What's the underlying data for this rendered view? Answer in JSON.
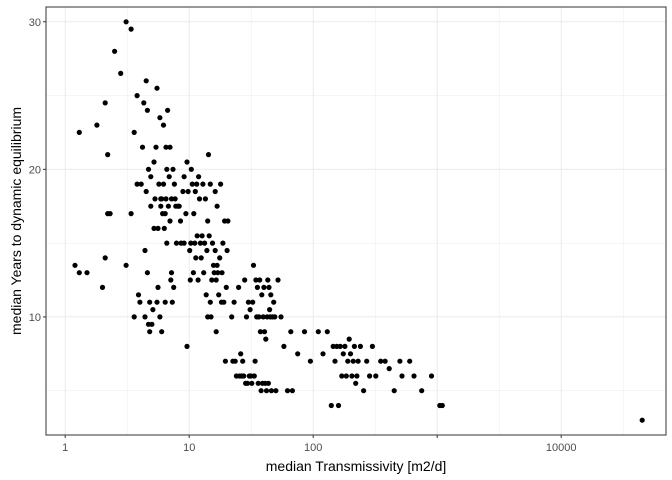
{
  "chart_data": {
    "type": "scatter",
    "xlabel": "median Transmissivity [m2/d]",
    "ylabel": "median Years to dynamic equilibrium",
    "x_scale": "log10",
    "xlim": [
      0.7,
      70000
    ],
    "ylim": [
      2.0,
      31.0
    ],
    "x_ticks": [
      1,
      10,
      100,
      1000,
      10000
    ],
    "x_tick_labels": [
      "1",
      "10",
      "100",
      "10000"
    ],
    "x_tick_label_values": [
      1,
      10,
      100,
      10000
    ],
    "y_ticks": [
      10,
      20,
      30
    ],
    "y_tick_labels": [
      "10",
      "20",
      "30"
    ],
    "grid": true,
    "legend": "none",
    "point_color": "#000000",
    "points": [
      [
        1.2,
        13.5
      ],
      [
        1.3,
        13
      ],
      [
        1.3,
        22.5
      ],
      [
        1.5,
        13
      ],
      [
        1.8,
        23
      ],
      [
        2.0,
        12
      ],
      [
        2.1,
        24.5
      ],
      [
        2.1,
        14
      ],
      [
        2.2,
        17
      ],
      [
        2.2,
        21
      ],
      [
        2.3,
        17
      ],
      [
        2.5,
        28
      ],
      [
        2.8,
        26.5
      ],
      [
        3.1,
        30
      ],
      [
        3.1,
        13.5
      ],
      [
        3.4,
        17
      ],
      [
        3.4,
        29.5
      ],
      [
        3.6,
        22.5
      ],
      [
        3.6,
        10
      ],
      [
        3.8,
        19
      ],
      [
        3.8,
        25
      ],
      [
        3.9,
        11.5
      ],
      [
        4.0,
        11
      ],
      [
        4.1,
        19
      ],
      [
        4.2,
        21.5
      ],
      [
        4.3,
        24.5
      ],
      [
        4.4,
        10
      ],
      [
        4.4,
        14.5
      ],
      [
        4.5,
        18.5
      ],
      [
        4.5,
        26
      ],
      [
        4.6,
        13
      ],
      [
        4.6,
        24
      ],
      [
        4.7,
        9.5
      ],
      [
        4.7,
        20
      ],
      [
        4.8,
        9
      ],
      [
        4.8,
        11
      ],
      [
        4.9,
        17.5
      ],
      [
        4.9,
        19.5
      ],
      [
        5.0,
        9.5
      ],
      [
        5.1,
        10.5
      ],
      [
        5.2,
        20.5
      ],
      [
        5.2,
        16
      ],
      [
        5.3,
        18
      ],
      [
        5.4,
        21.5
      ],
      [
        5.5,
        11
      ],
      [
        5.5,
        25.5
      ],
      [
        5.6,
        12
      ],
      [
        5.6,
        16
      ],
      [
        5.7,
        19
      ],
      [
        5.8,
        10
      ],
      [
        5.8,
        23.5
      ],
      [
        5.9,
        17.5
      ],
      [
        5.9,
        18
      ],
      [
        6.0,
        9
      ],
      [
        6.0,
        18
      ],
      [
        6.1,
        17
      ],
      [
        6.2,
        19
      ],
      [
        6.2,
        23
      ],
      [
        6.3,
        16
      ],
      [
        6.4,
        11
      ],
      [
        6.4,
        17
      ],
      [
        6.5,
        18
      ],
      [
        6.5,
        21.5
      ],
      [
        6.6,
        20
      ],
      [
        6.6,
        15
      ],
      [
        6.7,
        24
      ],
      [
        6.8,
        17.5
      ],
      [
        6.9,
        19.5
      ],
      [
        7.0,
        16.5
      ],
      [
        7.0,
        21.5
      ],
      [
        7.1,
        12.5
      ],
      [
        7.2,
        13
      ],
      [
        7.2,
        18
      ],
      [
        7.3,
        11
      ],
      [
        7.4,
        20
      ],
      [
        7.5,
        12
      ],
      [
        7.6,
        19
      ],
      [
        7.7,
        18
      ],
      [
        7.8,
        17.5
      ],
      [
        7.9,
        15
      ],
      [
        8.1,
        17.5
      ],
      [
        8.3,
        17.5
      ],
      [
        8.5,
        16.5
      ],
      [
        8.6,
        15
      ],
      [
        8.9,
        18.5
      ],
      [
        9.1,
        15
      ],
      [
        9.1,
        19.5
      ],
      [
        9.4,
        17
      ],
      [
        9.6,
        8
      ],
      [
        9.6,
        20.5
      ],
      [
        9.8,
        18.5
      ],
      [
        10.1,
        14.5
      ],
      [
        10.2,
        12.5
      ],
      [
        10.3,
        15
      ],
      [
        10.4,
        20
      ],
      [
        10.6,
        19
      ],
      [
        10.8,
        13
      ],
      [
        10.9,
        17
      ],
      [
        11.1,
        15
      ],
      [
        11.2,
        18.5
      ],
      [
        11.3,
        14
      ],
      [
        11.5,
        19
      ],
      [
        11.6,
        15.5
      ],
      [
        11.8,
        12.5
      ],
      [
        11.9,
        19.5
      ],
      [
        12.1,
        18
      ],
      [
        12.3,
        15
      ],
      [
        12.5,
        14
      ],
      [
        12.7,
        15.5
      ],
      [
        12.9,
        19
      ],
      [
        13.1,
        13
      ],
      [
        13.3,
        15
      ],
      [
        13.5,
        18
      ],
      [
        13.7,
        11.5
      ],
      [
        13.9,
        14.5
      ],
      [
        14.1,
        10
      ],
      [
        14.1,
        16.5
      ],
      [
        14.3,
        21
      ],
      [
        14.5,
        15.5
      ],
      [
        14.8,
        11
      ],
      [
        14.8,
        19
      ],
      [
        15.0,
        10
      ],
      [
        15.2,
        12.5
      ],
      [
        15.4,
        15
      ],
      [
        15.7,
        13.5
      ],
      [
        15.9,
        13
      ],
      [
        16.2,
        14.5
      ],
      [
        16.2,
        18.5
      ],
      [
        16.5,
        9
      ],
      [
        16.5,
        12.5
      ],
      [
        16.8,
        13.5
      ],
      [
        16.8,
        17.5
      ],
      [
        17.0,
        13
      ],
      [
        17.3,
        11.5
      ],
      [
        17.6,
        14
      ],
      [
        17.9,
        19
      ],
      [
        18.2,
        11
      ],
      [
        18.4,
        13
      ],
      [
        18.7,
        15
      ],
      [
        19.0,
        11
      ],
      [
        19.3,
        16.5
      ],
      [
        19.6,
        7
      ],
      [
        19.9,
        12
      ],
      [
        20.2,
        14.5
      ],
      [
        20.5,
        16.5
      ],
      [
        22.0,
        10
      ],
      [
        22.5,
        7
      ],
      [
        23.0,
        11
      ],
      [
        23.5,
        7
      ],
      [
        24.0,
        6
      ],
      [
        25.0,
        12
      ],
      [
        25.5,
        6
      ],
      [
        26.0,
        7.5
      ],
      [
        26.5,
        6
      ],
      [
        27.0,
        7
      ],
      [
        27.5,
        6
      ],
      [
        28.0,
        12.5
      ],
      [
        28.5,
        5.5
      ],
      [
        29.0,
        10
      ],
      [
        29.5,
        5.5
      ],
      [
        30.0,
        11
      ],
      [
        30.5,
        6
      ],
      [
        31.0,
        10.5
      ],
      [
        31.5,
        6
      ],
      [
        32.0,
        5.5
      ],
      [
        32.5,
        11
      ],
      [
        33.0,
        13.5
      ],
      [
        33.5,
        6
      ],
      [
        34.0,
        7
      ],
      [
        34.5,
        12.5
      ],
      [
        35.0,
        10
      ],
      [
        35.5,
        12
      ],
      [
        36.0,
        5.5
      ],
      [
        36.5,
        10
      ],
      [
        37.0,
        12.5
      ],
      [
        37.5,
        9
      ],
      [
        38.0,
        5
      ],
      [
        38.5,
        11.5
      ],
      [
        39.0,
        5.5
      ],
      [
        39.5,
        10
      ],
      [
        40.0,
        12
      ],
      [
        40.5,
        9
      ],
      [
        41.0,
        5.5
      ],
      [
        41.5,
        8.5
      ],
      [
        42.0,
        5
      ],
      [
        42.5,
        10
      ],
      [
        43.0,
        12.5
      ],
      [
        43.5,
        5.5
      ],
      [
        44.0,
        12
      ],
      [
        44.5,
        10.5
      ],
      [
        45.0,
        10
      ],
      [
        45.5,
        11.5
      ],
      [
        46.0,
        5
      ],
      [
        47.0,
        10
      ],
      [
        48.0,
        11
      ],
      [
        49.0,
        10
      ],
      [
        50.0,
        5
      ],
      [
        52.0,
        12.5
      ],
      [
        55.0,
        10
      ],
      [
        58.0,
        8
      ],
      [
        62.0,
        5
      ],
      [
        66.0,
        9
      ],
      [
        68.0,
        5
      ],
      [
        75.0,
        7.5
      ],
      [
        85.0,
        9
      ],
      [
        95.0,
        7
      ],
      [
        110.0,
        9
      ],
      [
        120.0,
        7.5
      ],
      [
        130.0,
        9
      ],
      [
        140.0,
        4
      ],
      [
        145.0,
        8
      ],
      [
        150.0,
        7
      ],
      [
        155.0,
        8
      ],
      [
        160.0,
        4
      ],
      [
        165.0,
        8
      ],
      [
        170.0,
        6
      ],
      [
        175.0,
        7.5
      ],
      [
        180.0,
        8
      ],
      [
        185.0,
        6
      ],
      [
        190.0,
        7
      ],
      [
        195.0,
        8.5
      ],
      [
        200.0,
        7.5
      ],
      [
        205.0,
        6
      ],
      [
        210.0,
        7
      ],
      [
        215.0,
        8
      ],
      [
        220.0,
        5.5
      ],
      [
        225.0,
        6
      ],
      [
        230.0,
        7
      ],
      [
        240.0,
        8
      ],
      [
        255.0,
        5
      ],
      [
        270.0,
        7
      ],
      [
        285.0,
        6
      ],
      [
        300.0,
        8
      ],
      [
        320.0,
        6
      ],
      [
        350.0,
        7
      ],
      [
        380.0,
        7
      ],
      [
        410.0,
        6.5
      ],
      [
        450.0,
        5
      ],
      [
        500.0,
        7
      ],
      [
        520.0,
        6
      ],
      [
        600.0,
        7
      ],
      [
        650.0,
        6
      ],
      [
        750.0,
        5
      ],
      [
        900.0,
        6
      ],
      [
        1050.0,
        4
      ],
      [
        1100.0,
        4
      ],
      [
        45000.0,
        3
      ]
    ]
  }
}
